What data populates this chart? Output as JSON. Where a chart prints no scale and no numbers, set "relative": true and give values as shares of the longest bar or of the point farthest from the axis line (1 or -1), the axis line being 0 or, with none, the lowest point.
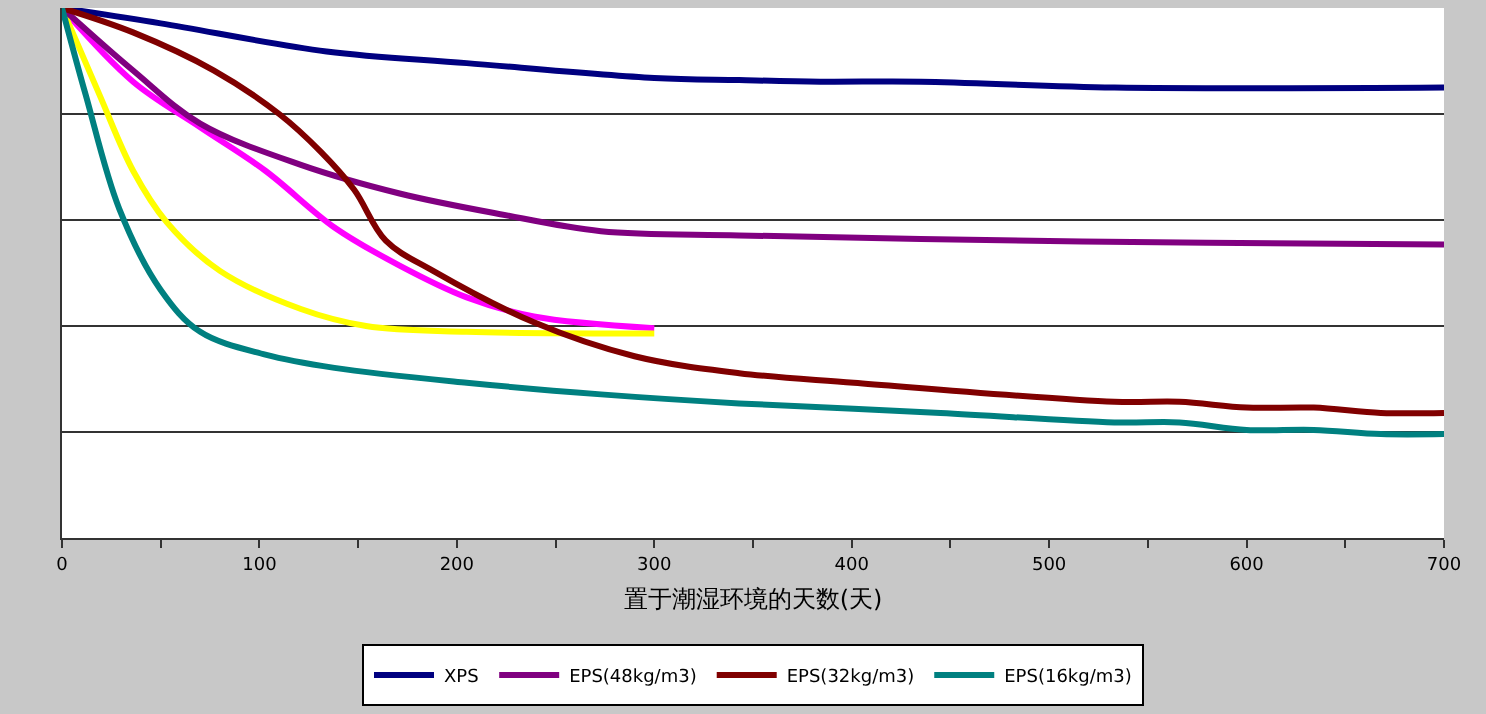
{
  "chart_data": {
    "type": "line",
    "relative": true,
    "xlabel": "置于潮湿环境的天数(天)",
    "xlim": [
      0,
      700
    ],
    "xticks": [
      0,
      {
        "value": 50,
        "label": null
      },
      100,
      {
        "value": 150,
        "label": null
      },
      200,
      {
        "value": 250,
        "label": null
      },
      300,
      {
        "value": 350,
        "label": null
      },
      400,
      {
        "value": 450,
        "label": null
      },
      500,
      {
        "value": 550,
        "label": null
      },
      600,
      {
        "value": 650,
        "label": null
      },
      700
    ],
    "grid": "y",
    "legend": "bottom",
    "marker": "none",
    "line_style": "solid",
    "series": [
      {
        "name": "XPS",
        "color": "#000080",
        "x": [
          0,
          50,
          134,
          205,
          300,
          343,
          384,
          435,
          533,
          700
        ],
        "values": [
          1,
          0.971,
          0.918,
          0.896,
          0.868,
          0.864,
          0.861,
          0.861,
          0.85,
          0.85
        ]
      },
      {
        "color": "#ff00ff",
        "x": [
          0,
          36,
          70,
          103,
          138,
          171,
          205,
          239,
          300
        ],
        "values": [
          1,
          0.861,
          0.775,
          0.693,
          0.586,
          0.514,
          0.454,
          0.418,
          0.396
        ]
      },
      {
        "color": "#ffff00",
        "x": [
          0,
          19,
          36,
          53,
          80,
          121,
          154,
          205,
          300
        ],
        "values": [
          1,
          0.836,
          0.693,
          0.596,
          0.504,
          0.432,
          0.4,
          0.389,
          0.386
        ]
      },
      {
        "name": "EPS(48kg/m3)",
        "color": "#800080",
        "x": [
          0,
          36,
          70,
          121,
          171,
          222,
          273,
          343,
          435,
          580,
          700
        ],
        "values": [
          1,
          0.882,
          0.782,
          0.704,
          0.65,
          0.611,
          0.579,
          0.571,
          0.564,
          0.557,
          0.554
        ]
      },
      {
        "name": "EPS(32kg/m3)",
        "color": "#800000",
        "x": [
          0,
          36,
          77,
          110,
          131,
          148,
          164,
          188,
          239,
          290,
          343,
          401,
          533,
          566,
          600,
          634,
          668,
          700
        ],
        "values": [
          1,
          0.954,
          0.882,
          0.8,
          0.729,
          0.657,
          0.561,
          0.504,
          0.407,
          0.343,
          0.311,
          0.293,
          0.257,
          0.257,
          0.246,
          0.246,
          0.236,
          0.236
        ]
      },
      {
        "name": "EPS(16kg/m3)",
        "color": "#008080",
        "x": [
          0,
          12,
          29,
          50,
          70,
          103,
          138,
          205,
          273,
          343,
          445,
          533,
          566,
          600,
          634,
          668,
          700
        ],
        "values": [
          1,
          0.836,
          0.621,
          0.468,
          0.389,
          0.346,
          0.321,
          0.293,
          0.271,
          0.254,
          0.236,
          0.218,
          0.218,
          0.204,
          0.204,
          0.196,
          0.196
        ]
      }
    ]
  }
}
